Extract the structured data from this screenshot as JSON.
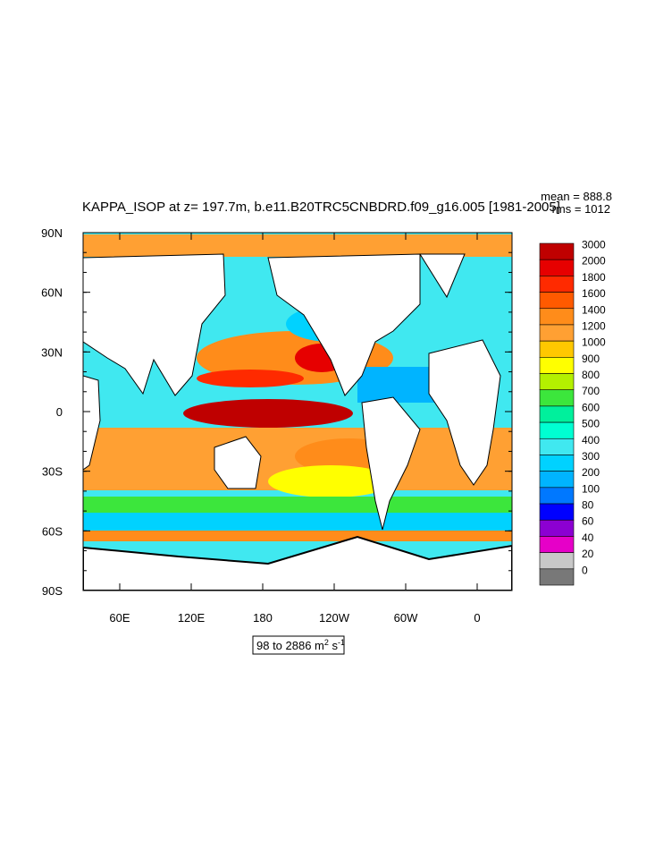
{
  "title": "KAPPA_ISOP at z= 197.7m, b.e11.B20TRC5CNBDRD.f09_g16.005 [1981-2005]",
  "stats": [
    "mean = 888.8",
    "rms = 1012"
  ],
  "lat_labels": [
    "90N",
    "60N",
    "30N",
    "0",
    "30S",
    "60S",
    "90S"
  ],
  "lon_labels": [
    "60E",
    "120E",
    "180",
    "120W",
    "60W",
    "0"
  ],
  "colorbar": {
    "levels": [
      3000,
      2000,
      1800,
      1600,
      1400,
      1200,
      1000,
      900,
      800,
      700,
      600,
      500,
      400,
      300,
      200,
      100,
      80,
      60,
      40,
      20,
      0
    ],
    "colors": [
      "#bf0000",
      "#e60000",
      "#ff2a00",
      "#ff5a00",
      "#ff8c1a",
      "#ffa033",
      "#ffc800",
      "#ffff00",
      "#b4f000",
      "#3ce63c",
      "#00f09c",
      "#00ffd2",
      "#40e8f0",
      "#00d2ff",
      "#00b4ff",
      "#0078ff",
      "#0000ff",
      "#8c00d2",
      "#e600c8",
      "#c8c8c8",
      "#787878"
    ]
  },
  "range_label": [
    "98 to 2886 m",
    "2",
    " s",
    "-1"
  ]
}
